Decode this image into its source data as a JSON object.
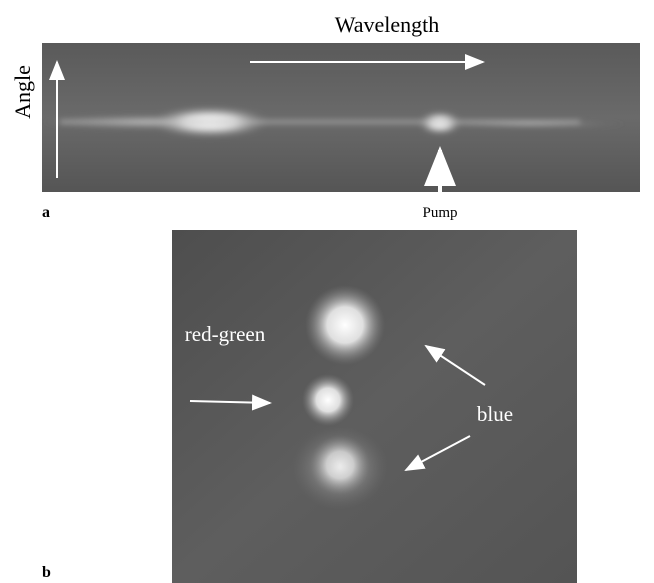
{
  "panel_a": {
    "label": "a",
    "x_axis": "Wavelength",
    "y_axis": "Angle",
    "annotation": "Pump"
  },
  "panel_b": {
    "label": "b",
    "annotations": [
      "red-green",
      "blue"
    ]
  }
}
